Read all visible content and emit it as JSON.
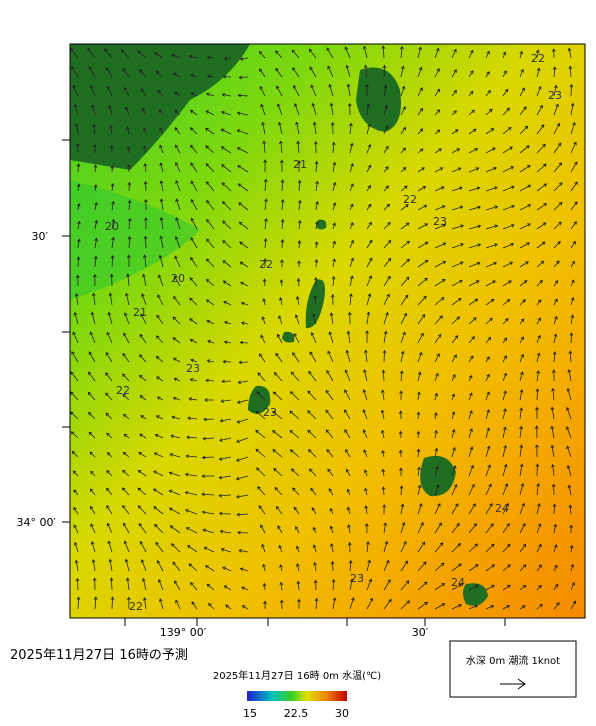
{
  "map": {
    "title": "2025年11月27日 16時の予測",
    "lat_labels": [
      "30′",
      "34° 00′"
    ],
    "lon_labels": [
      "139° 00′",
      "30′"
    ],
    "contour_labels": [
      22,
      23,
      21,
      22,
      23,
      20,
      22,
      20,
      21,
      23,
      22,
      23,
      24,
      23,
      24,
      22
    ],
    "legend": {
      "title": "2025年11月27日 16時 0m 水温(℃)",
      "range": [
        15,
        30
      ],
      "ticks": [
        15,
        22.5,
        30
      ]
    },
    "current_legend": "水深 0m 潮流 1knot"
  }
}
